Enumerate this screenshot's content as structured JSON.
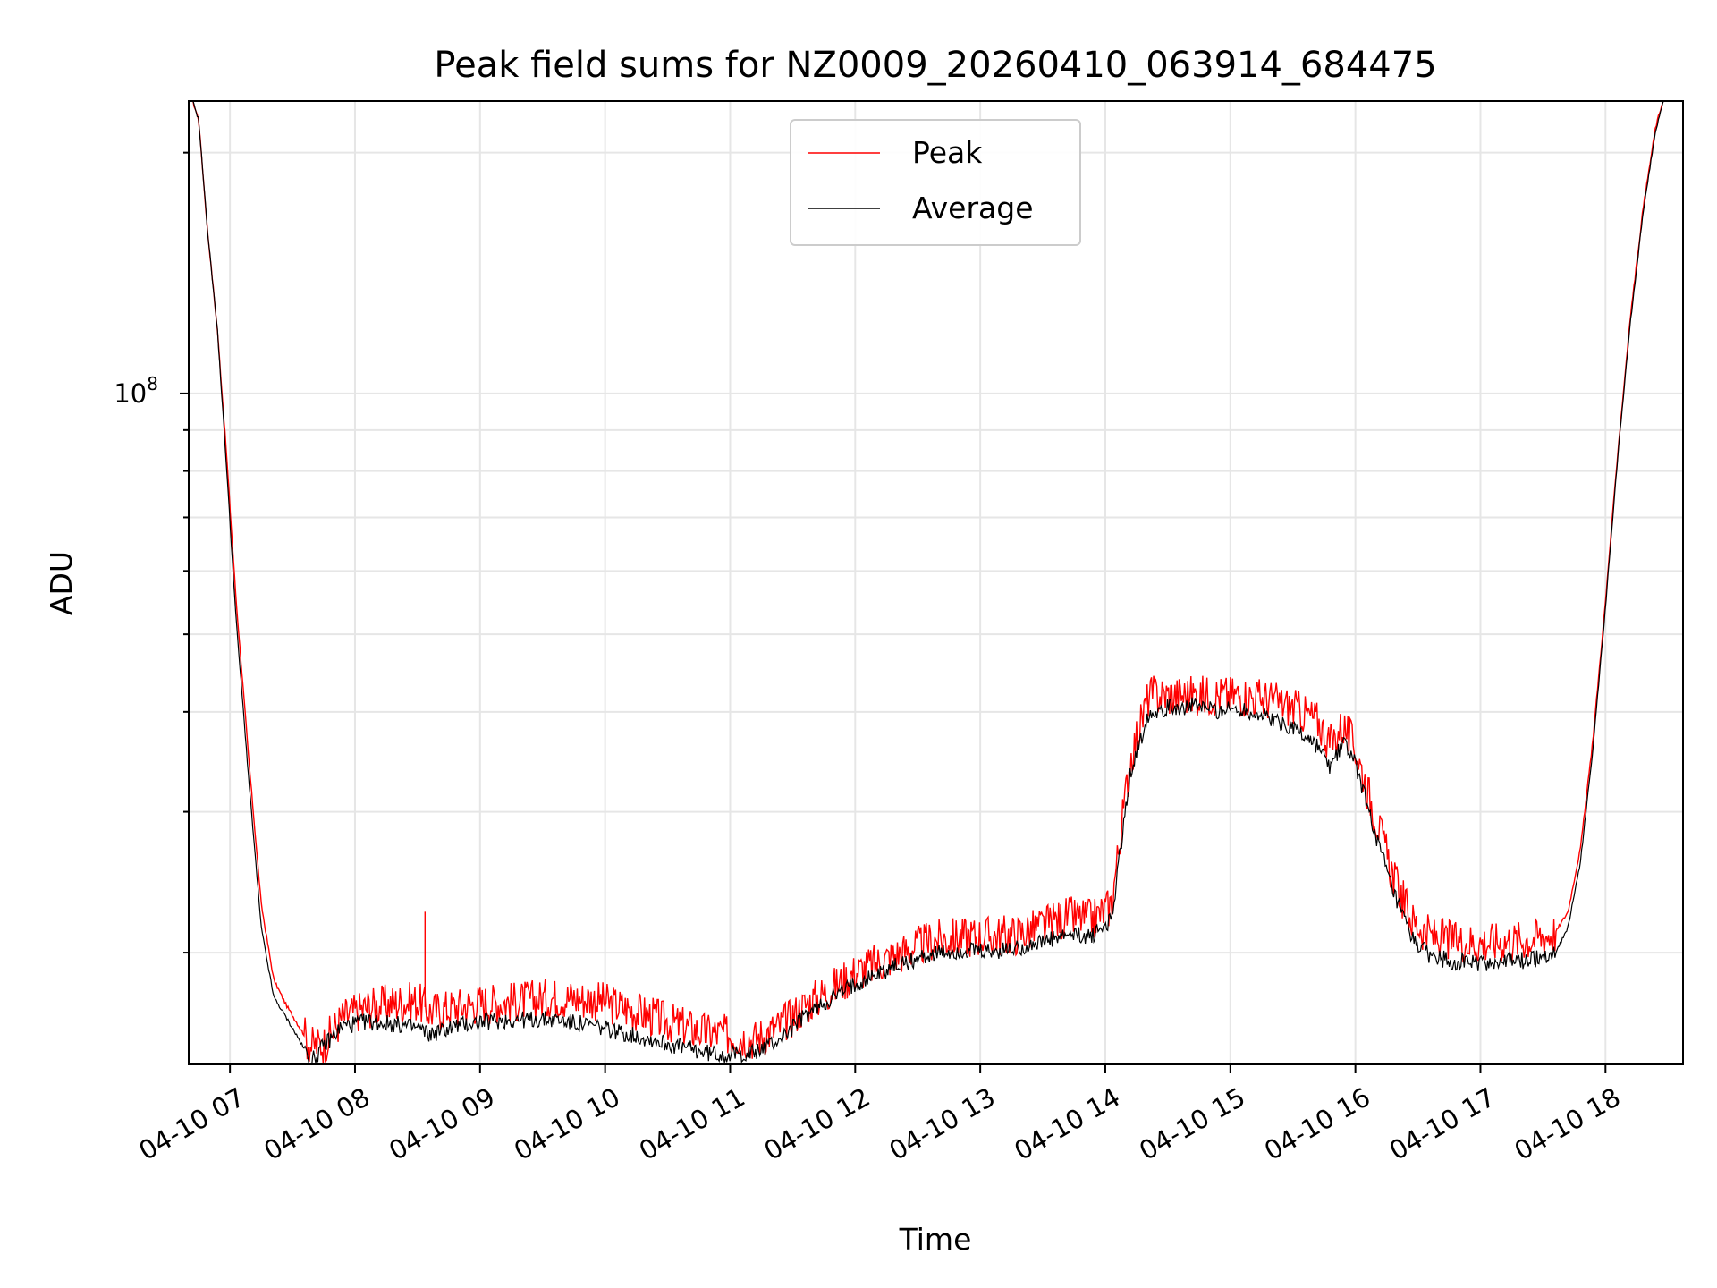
{
  "chart_data": {
    "type": "line",
    "title": "Peak field sums for NZ0009_20260410_063914_684475",
    "xlabel": "Time",
    "ylabel": "ADU",
    "y_scale": "log",
    "y_tick_label_base": "10",
    "y_tick_label_exponent": "8",
    "y_major_tick_value": 100000000,
    "y_minor_tick_values": [
      20000000,
      30000000,
      40000000,
      50000000,
      60000000,
      70000000,
      80000000,
      90000000,
      200000000
    ],
    "xlim_hours": [
      6.67,
      18.62
    ],
    "ylim": [
      14500000,
      232000000
    ],
    "x_tick_hours": [
      7,
      8,
      9,
      10,
      11,
      12,
      13,
      14,
      15,
      16,
      17,
      18
    ],
    "x_tick_labels": [
      "04-10 07",
      "04-10 08",
      "04-10 09",
      "04-10 10",
      "04-10 11",
      "04-10 12",
      "04-10 13",
      "04-10 14",
      "04-10 15",
      "04-10 16",
      "04-10 17",
      "04-10 18"
    ],
    "grid": true,
    "legend_position": "upper-center",
    "series": [
      {
        "name": "Peak",
        "color": "#ff0000",
        "x_hours": [
          6.67,
          6.75,
          6.82,
          6.9,
          6.97,
          7.05,
          7.15,
          7.25,
          7.35,
          7.45,
          7.55,
          7.65,
          7.75,
          7.9,
          8.1,
          8.3,
          8.5,
          8.6,
          8.8,
          9.0,
          9.3,
          9.6,
          9.9,
          10.2,
          10.5,
          10.8,
          11.0,
          11.2,
          11.4,
          11.6,
          11.8,
          12.0,
          12.3,
          12.6,
          12.9,
          13.1,
          13.3,
          13.5,
          13.7,
          13.9,
          14.05,
          14.2,
          14.35,
          14.5,
          14.7,
          14.9,
          15.1,
          15.3,
          15.5,
          15.7,
          15.8,
          15.9,
          16.0,
          16.15,
          16.3,
          16.45,
          16.6,
          16.8,
          17.0,
          17.2,
          17.4,
          17.6,
          17.7,
          17.8,
          17.9,
          18.0,
          18.1,
          18.2,
          18.3,
          18.4,
          18.5,
          18.62
        ],
        "values": [
          240000000,
          220000000,
          160000000,
          120000000,
          85000000,
          55000000,
          35000000,
          23000000,
          18500000,
          17200000,
          16200000,
          15300000,
          15400000,
          16600000,
          17100000,
          17300000,
          17400000,
          16900000,
          17100000,
          17300000,
          17400000,
          17600000,
          17500000,
          17000000,
          16400000,
          15900000,
          15800000,
          15600000,
          16200000,
          17200000,
          18000000,
          18900000,
          19800000,
          20700000,
          21000000,
          21000000,
          21100000,
          21600000,
          22200000,
          22000000,
          23000000,
          35000000,
          42000000,
          42000000,
          42000000,
          42000000,
          42000000,
          41500000,
          40500000,
          39000000,
          36500000,
          38500000,
          36000000,
          30000000,
          25000000,
          22000000,
          21000000,
          20700000,
          20600000,
          20700000,
          20800000,
          21200000,
          22500000,
          27000000,
          37000000,
          55000000,
          85000000,
          125000000,
          170000000,
          215000000,
          245000000,
          255000000
        ]
      },
      {
        "name": "Average",
        "color": "#000000",
        "x_hours": [
          6.67,
          6.75,
          6.82,
          6.9,
          6.97,
          7.05,
          7.15,
          7.25,
          7.35,
          7.45,
          7.55,
          7.65,
          7.75,
          7.9,
          8.1,
          8.3,
          8.5,
          8.6,
          8.8,
          9.0,
          9.3,
          9.6,
          9.9,
          10.2,
          10.5,
          10.8,
          11.0,
          11.2,
          11.4,
          11.6,
          11.8,
          12.0,
          12.3,
          12.6,
          12.9,
          13.1,
          13.3,
          13.5,
          13.7,
          13.9,
          14.05,
          14.2,
          14.35,
          14.5,
          14.7,
          14.9,
          15.1,
          15.3,
          15.5,
          15.7,
          15.8,
          15.9,
          16.0,
          16.15,
          16.3,
          16.45,
          16.6,
          16.8,
          17.0,
          17.2,
          17.4,
          17.6,
          17.7,
          17.8,
          17.9,
          18.0,
          18.1,
          18.2,
          18.3,
          18.4,
          18.5,
          18.62
        ],
        "values": [
          240000000,
          220000000,
          160000000,
          120000000,
          82000000,
          52000000,
          33000000,
          21500000,
          17600000,
          16600000,
          15600000,
          14600000,
          15300000,
          16200000,
          16400000,
          16300000,
          16100000,
          15800000,
          16200000,
          16400000,
          16500000,
          16500000,
          16200000,
          15800000,
          15400000,
          15000000,
          14900000,
          15000000,
          15600000,
          16700000,
          17500000,
          18300000,
          19200000,
          19900000,
          20100000,
          20000000,
          20300000,
          20600000,
          21000000,
          21000000,
          22000000,
          33500000,
          40000000,
          40500000,
          40700000,
          40200000,
          40300000,
          39300000,
          38300000,
          36200000,
          34000000,
          36800000,
          34500000,
          28500000,
          23800000,
          20800000,
          19800000,
          19500000,
          19400000,
          19500000,
          19600000,
          20000000,
          21500000,
          26000000,
          36000000,
          54000000,
          84000000,
          123000000,
          168000000,
          213000000,
          243000000,
          255000000
        ]
      }
    ],
    "annotations": [
      {
        "type": "spike",
        "series": "Peak",
        "x_hours": 8.56,
        "value": 22500000
      }
    ]
  }
}
